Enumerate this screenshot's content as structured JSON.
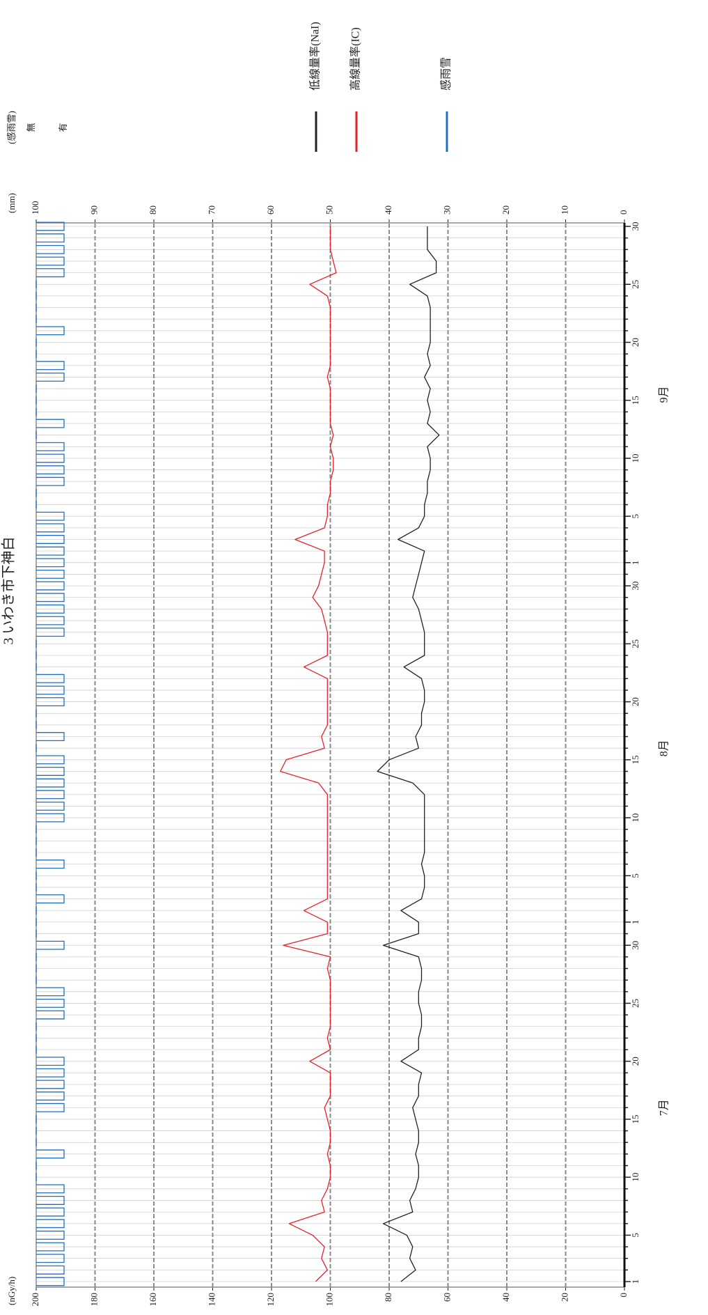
{
  "chart_data": {
    "type": "line",
    "title": "3 いわき市下神白",
    "y_label": "(nGy/h)",
    "y2_label": "(mm)",
    "categories": [
      1,
      null,
      null,
      null,
      5,
      null,
      null,
      null,
      null,
      10,
      null,
      null,
      null,
      null,
      15,
      null,
      null,
      null,
      null,
      20,
      null,
      null,
      null,
      null,
      25,
      null,
      null,
      null,
      null,
      30,
      null,
      1,
      null,
      null,
      null,
      5,
      null,
      null,
      null,
      null,
      10,
      null,
      null,
      null,
      null,
      15,
      null,
      null,
      null,
      null,
      20,
      null,
      null,
      null,
      null,
      25,
      null,
      null,
      null,
      null,
      30,
      null,
      1,
      null,
      null,
      null,
      5,
      null,
      null,
      null,
      null,
      10,
      null,
      null,
      null,
      null,
      15,
      null,
      null,
      null,
      null,
      20,
      null,
      null,
      null,
      null,
      25,
      null,
      null,
      null,
      null,
      30
    ],
    "month_labels": [
      "7月",
      "8月",
      "9月"
    ],
    "ylim": [
      0,
      200
    ],
    "yticks": [
      0,
      20,
      40,
      60,
      80,
      100,
      120,
      140,
      160,
      180,
      200
    ],
    "y2lim": [
      0,
      100
    ],
    "y2ticks": [
      0,
      10,
      20,
      30,
      40,
      50,
      60,
      70,
      80,
      90,
      100
    ],
    "grid": true,
    "rain_axis": {
      "label": "(感雨雪)",
      "levels": [
        "無",
        "有"
      ]
    },
    "series": [
      {
        "name": "低線量率(NaI)",
        "color": "#231f20",
        "values": [
          76,
          71,
          73,
          72,
          74,
          82,
          72,
          73,
          71,
          70,
          70,
          71,
          70,
          70,
          71,
          72,
          70,
          70,
          69,
          76,
          70,
          70,
          69,
          69,
          70,
          70,
          69,
          69,
          70,
          82,
          70,
          70,
          76,
          69,
          68,
          68,
          69,
          68,
          68,
          68,
          68,
          68,
          68,
          72,
          84,
          80,
          70,
          71,
          69,
          69,
          68,
          68,
          69,
          75,
          68,
          68,
          68,
          69,
          70,
          72,
          71,
          70,
          69,
          68,
          77,
          70,
          68,
          68,
          67,
          67,
          66,
          66,
          67,
          63,
          67,
          66,
          67,
          66,
          68,
          66,
          67,
          66,
          66,
          66,
          66,
          67,
          73,
          64,
          64,
          67,
          67,
          67
        ]
      },
      {
        "name": "高線量率(IC)",
        "color": "#e8202a",
        "values": [
          105,
          101,
          103,
          102,
          106,
          114,
          102,
          103,
          101,
          100,
          100,
          101,
          100,
          100,
          101,
          102,
          100,
          100,
          100,
          107,
          100,
          101,
          100,
          100,
          100,
          100,
          100,
          101,
          100,
          116,
          101,
          101,
          109,
          101,
          101,
          101,
          101,
          101,
          101,
          101,
          101,
          101,
          101,
          104,
          117,
          115,
          102,
          103,
          101,
          101,
          101,
          101,
          101,
          109,
          101,
          101,
          101,
          102,
          103,
          106,
          104,
          103,
          102,
          102,
          112,
          102,
          101,
          101,
          100,
          100,
          99,
          99,
          100,
          99,
          100,
          100,
          100,
          100,
          101,
          100,
          100,
          100,
          100,
          100,
          100,
          101,
          107,
          98,
          99,
          100,
          100,
          100
        ]
      },
      {
        "name": "感雨雪",
        "color": "#1f6fbf",
        "axis": "rain",
        "values": [
          1,
          1,
          1,
          1,
          1,
          1,
          1,
          1,
          1,
          0,
          0,
          1,
          0,
          0,
          0,
          1,
          1,
          1,
          1,
          1,
          0,
          0,
          0,
          1,
          1,
          1,
          0,
          0,
          0,
          1,
          0,
          0,
          0,
          1,
          0,
          0,
          1,
          0,
          0,
          0,
          1,
          1,
          1,
          1,
          1,
          1,
          0,
          1,
          0,
          0,
          1,
          1,
          1,
          0,
          0,
          0,
          1,
          1,
          1,
          1,
          1,
          1,
          1,
          1,
          1,
          1,
          1,
          0,
          0,
          1,
          1,
          1,
          1,
          0,
          1,
          0,
          0,
          0,
          1,
          1,
          0,
          0,
          1,
          0,
          0,
          0,
          0,
          1,
          1,
          1,
          1,
          1
        ]
      }
    ]
  }
}
